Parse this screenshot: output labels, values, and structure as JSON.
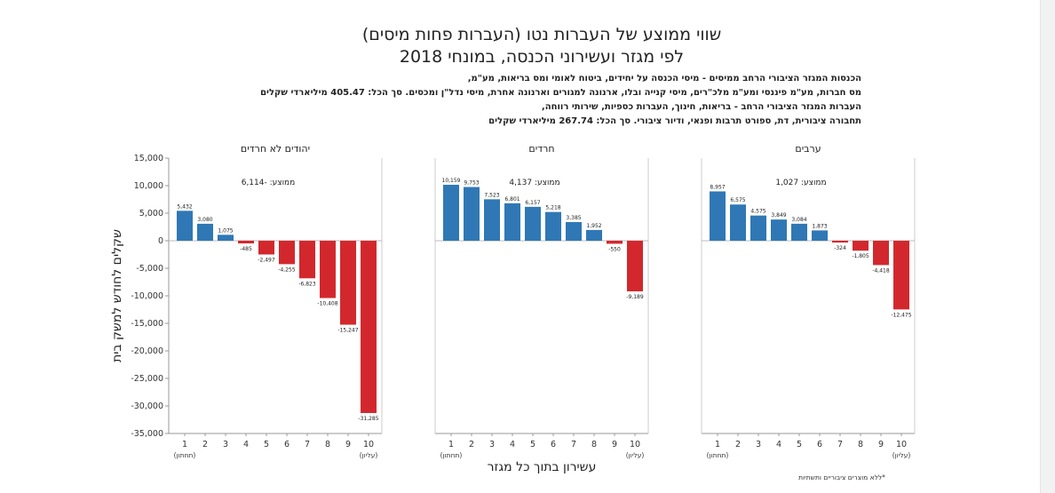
{
  "title_line1": "שווי ממוצע של העברות נטו (העברות פחות מיסים)",
  "title_line2": "לפי מגזר ועשירוני הכנסה, במונחי 2018",
  "notes": [
    "הכנסות המגזר הציבורי הרחב ממיסים - מיסי הכנסה על יחידים, ביטוח לאומי ומס בריאות, מע\"מ,",
    "מס חברות, מע\"מ פיננסי ומע\"מ מלכ\"רים, מיסי קנייה ובלו, ארנונה למגורים וארנונה אחרת, מיסי נדל\"ן ומכסים. סך הכל: 405.47 מיליארדי שקלים",
    "העברות המגזר הציבורי הרחב - בריאות, חינוך, העברות כספיות, שירותי רווחה,",
    "תחבורה ציבורית, דת, ספורט תרבות ופנאי, ודיור ציבורי. סך הכל: 267.74 מיליארדי שקלים"
  ],
  "footnote": "*ללא מוצרים ציבוריים ותשתיות",
  "chart_data": {
    "type": "bar",
    "ylabel": "שקלים לחודש למשק בית",
    "xlabel": "עשירון בתוך כל מגזר",
    "ylim": [
      -35000,
      15000
    ],
    "yticks": [
      15000,
      10000,
      5000,
      0,
      -5000,
      -10000,
      -15000,
      -20000,
      -25000,
      -30000,
      -35000
    ],
    "ytick_labels": [
      "15,000",
      "10,000",
      "5,000",
      "0",
      "-5,000",
      "-10,000",
      "-15,000",
      "-20,000",
      "-25,000",
      "-30,000",
      "-35,000"
    ],
    "categories": [
      "1",
      "2",
      "3",
      "4",
      "5",
      "6",
      "7",
      "8",
      "9",
      "10"
    ],
    "cat_low_note": "(תחתון)",
    "cat_high_note": "(עליון)",
    "positive_color": "#2f78b5",
    "negative_color": "#d2282d",
    "grid": false,
    "panels": [
      {
        "name": "יהודים לא חרדים",
        "avg_label": "ממוצע: -6,114",
        "values": [
          5432,
          3080,
          1075,
          -485,
          -2497,
          -4255,
          -6823,
          -10408,
          -15247,
          -31285
        ],
        "labels": [
          "5,432",
          "3,080",
          "1,075",
          "-485",
          "-2,497",
          "-4,255",
          "-6,823",
          "-10,408",
          "-15,247",
          "-31,285"
        ]
      },
      {
        "name": "חרדים",
        "avg_label": "ממוצע: 4,137",
        "values": [
          10159,
          9753,
          7523,
          6801,
          6157,
          5218,
          3385,
          1952,
          -550,
          -9189
        ],
        "labels": [
          "10,159",
          "9,753",
          "7,523",
          "6,801",
          "6,157",
          "5,218",
          "3,385",
          "1,952",
          "-550",
          "-9,189"
        ]
      },
      {
        "name": "ערבים",
        "avg_label": "ממוצע: 1,027",
        "values": [
          8957,
          6575,
          4575,
          3849,
          3084,
          1873,
          -324,
          -1805,
          -4418,
          -12475
        ],
        "labels": [
          "8,957",
          "6,575",
          "4,575",
          "3,849",
          "3,084",
          "1,873",
          "-324",
          "-1,805",
          "-4,418",
          "-12,475"
        ]
      }
    ]
  }
}
